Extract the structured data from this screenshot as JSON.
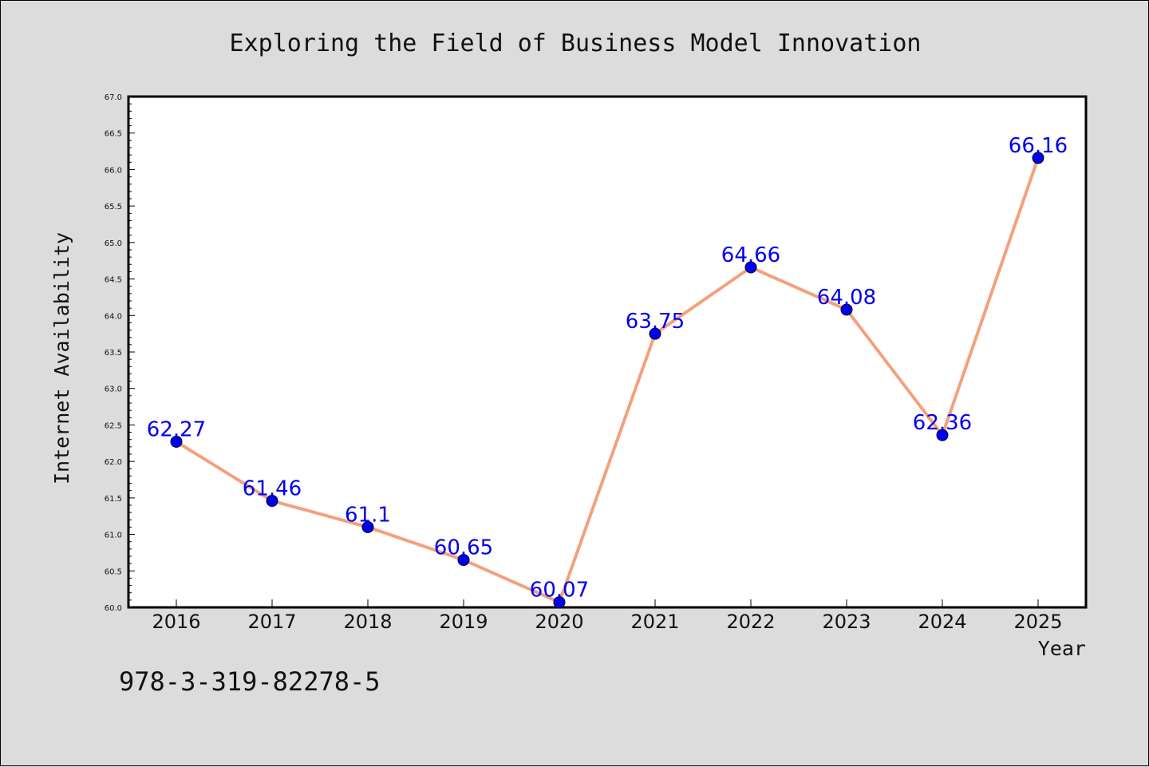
{
  "chart_data": {
    "type": "line",
    "title": "Exploring the Field of Business Model Innovation",
    "xlabel": "Year",
    "ylabel": "Internet Availability",
    "categories": [
      "2016",
      "2017",
      "2018",
      "2019",
      "2020",
      "2021",
      "2022",
      "2023",
      "2024",
      "2025"
    ],
    "series": [
      {
        "values": [
          62.27,
          61.46,
          61.1,
          60.65,
          60.07,
          63.75,
          64.66,
          64.08,
          62.36,
          66.16
        ]
      }
    ],
    "data_labels": [
      "62.27",
      "61.46",
      "61.1",
      "60.65",
      "60.07",
      "63.75",
      "64.66",
      "64.08",
      "62.36",
      "66.16"
    ],
    "ylim": [
      60.0,
      67.0
    ],
    "yticks": [
      "60.0",
      "60.5",
      "61.0",
      "61.5",
      "62.0",
      "62.5",
      "63.0",
      "63.5",
      "64.0",
      "64.5",
      "65.0",
      "65.5",
      "66.0",
      "66.5",
      "67.0"
    ],
    "grid": false,
    "legend": "none",
    "colors": {
      "line": "#f4a07e",
      "marker": "#0000ee",
      "label": "#0000ee",
      "background": "#dcdcdc",
      "plot_background": "#ffffff"
    }
  },
  "footer": {
    "isbn": "978-3-319-82278-5"
  }
}
